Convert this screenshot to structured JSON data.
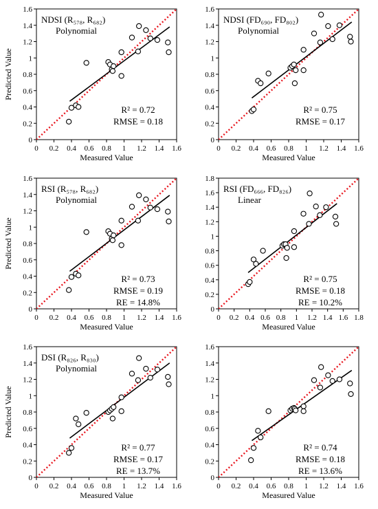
{
  "figure": {
    "chart_data": [
      {
        "type": "scatter",
        "label": "NDSI (R₅₇₈, R₆₈₂)",
        "method": "Polynomial",
        "r2": "R² = 0.72",
        "rmse": "RMSE = 0.18",
        "re": "",
        "xlabel": "Measured Value",
        "ylabel": "Predicted Value",
        "xlim": [
          0,
          1.6
        ],
        "ylim": [
          0,
          1.6
        ],
        "xticks": [
          "0",
          "0.2",
          "0.4",
          "0.6",
          "0.8",
          "1",
          "1.2",
          "1.4",
          "1.6"
        ],
        "yticks": [
          "0",
          "0.2",
          "0.4",
          "0.6",
          "0.8",
          "1",
          "1.2",
          "1.4",
          "1.6"
        ],
        "points": [
          [
            0.37,
            0.22
          ],
          [
            0.4,
            0.39
          ],
          [
            0.45,
            0.42
          ],
          [
            0.48,
            0.4
          ],
          [
            0.57,
            0.94
          ],
          [
            0.82,
            0.95
          ],
          [
            0.84,
            0.92
          ],
          [
            0.86,
            0.86
          ],
          [
            0.87,
            0.84
          ],
          [
            0.88,
            0.9
          ],
          [
            0.97,
            1.07
          ],
          [
            0.97,
            0.78
          ],
          [
            1.09,
            1.25
          ],
          [
            1.16,
            1.08
          ],
          [
            1.17,
            1.39
          ],
          [
            1.25,
            1.34
          ],
          [
            1.3,
            1.24
          ],
          [
            1.38,
            1.22
          ],
          [
            1.5,
            1.19
          ],
          [
            1.51,
            1.07
          ]
        ],
        "fit": [
          [
            0.38,
            0.47
          ],
          [
            1.52,
            1.38
          ]
        ]
      },
      {
        "type": "scatter",
        "label": "NDSI (FD₆₉₀, FD₈₀₂)",
        "method": "Polynomial",
        "r2": "R² = 0.75",
        "rmse": "RMSE = 0.17",
        "re": "",
        "xlabel": "Measured Value",
        "ylabel": "",
        "xlim": [
          0,
          1.6
        ],
        "ylim": [
          0,
          1.6
        ],
        "xticks": [
          "0",
          "0.2",
          "0.4",
          "0.6",
          "0.8",
          "1",
          "1.2",
          "1.4",
          "1.6"
        ],
        "yticks": [
          "0",
          "0.2",
          "0.4",
          "0.6",
          "0.8",
          "1",
          "1.2",
          "1.4",
          "1.6"
        ],
        "points": [
          [
            0.38,
            0.35
          ],
          [
            0.4,
            0.37
          ],
          [
            0.45,
            0.72
          ],
          [
            0.48,
            0.69
          ],
          [
            0.57,
            0.81
          ],
          [
            0.82,
            0.88
          ],
          [
            0.84,
            0.9
          ],
          [
            0.86,
            0.92
          ],
          [
            0.87,
            0.69
          ],
          [
            0.88,
            0.85
          ],
          [
            0.97,
            1.1
          ],
          [
            0.97,
            0.85
          ],
          [
            1.09,
            1.3
          ],
          [
            1.16,
            1.19
          ],
          [
            1.17,
            1.53
          ],
          [
            1.25,
            1.39
          ],
          [
            1.3,
            1.23
          ],
          [
            1.38,
            1.4
          ],
          [
            1.5,
            1.26
          ],
          [
            1.51,
            1.2
          ]
        ],
        "fit": [
          [
            0.38,
            0.51
          ],
          [
            1.52,
            1.44
          ]
        ]
      },
      {
        "type": "scatter",
        "label": "RSI (R₅₇₈, R₆₈₂)",
        "method": "Polynomial",
        "r2": "R² = 0.73",
        "rmse": "RMSE = 0.19",
        "re": "RE = 14.8%",
        "xlabel": "Measured Value",
        "ylabel": "Predicted Value",
        "xlim": [
          0,
          1.6
        ],
        "ylim": [
          0,
          1.6
        ],
        "xticks": [
          "0",
          "0.2",
          "0.4",
          "0.6",
          "0.8",
          "1",
          "1.2",
          "1.4",
          "1.6"
        ],
        "yticks": [
          "0",
          "0.2",
          "0.4",
          "0.6",
          "0.8",
          "1",
          "1.2",
          "1.4",
          "1.6"
        ],
        "points": [
          [
            0.37,
            0.23
          ],
          [
            0.4,
            0.39
          ],
          [
            0.45,
            0.43
          ],
          [
            0.48,
            0.41
          ],
          [
            0.57,
            0.94
          ],
          [
            0.82,
            0.95
          ],
          [
            0.84,
            0.92
          ],
          [
            0.86,
            0.86
          ],
          [
            0.87,
            0.84
          ],
          [
            0.88,
            0.9
          ],
          [
            0.97,
            1.08
          ],
          [
            0.97,
            0.78
          ],
          [
            1.09,
            1.25
          ],
          [
            1.16,
            1.08
          ],
          [
            1.17,
            1.39
          ],
          [
            1.25,
            1.34
          ],
          [
            1.3,
            1.24
          ],
          [
            1.38,
            1.22
          ],
          [
            1.5,
            1.19
          ],
          [
            1.51,
            1.07
          ]
        ],
        "fit": [
          [
            0.38,
            0.46
          ],
          [
            1.52,
            1.39
          ]
        ]
      },
      {
        "type": "scatter",
        "label": "RSI (FD₆₆₆, FD₈₂₆)",
        "method": "Linear",
        "r2": "R² = 0.75",
        "rmse": "RMSE = 0.18",
        "re": "RE = 10.2%",
        "xlabel": "Measured Value",
        "ylabel": "",
        "xlim": [
          0,
          1.8
        ],
        "ylim": [
          0,
          1.8
        ],
        "xticks": [
          "0",
          "0.2",
          "0.4",
          "0.6",
          "0.8",
          "1",
          "1.2",
          "1.4",
          "1.6",
          "1.8"
        ],
        "yticks": [
          "0",
          "0.2",
          "0.4",
          "0.6",
          "0.8",
          "1",
          "1.2",
          "1.4",
          "1.6",
          "1.8"
        ],
        "points": [
          [
            0.38,
            0.34
          ],
          [
            0.4,
            0.37
          ],
          [
            0.45,
            0.68
          ],
          [
            0.48,
            0.62
          ],
          [
            0.57,
            0.8
          ],
          [
            0.82,
            0.87
          ],
          [
            0.84,
            0.89
          ],
          [
            0.86,
            0.89
          ],
          [
            0.87,
            0.7
          ],
          [
            0.88,
            0.84
          ],
          [
            0.97,
            1.07
          ],
          [
            0.97,
            0.85
          ],
          [
            1.09,
            1.31
          ],
          [
            1.16,
            1.17
          ],
          [
            1.17,
            1.59
          ],
          [
            1.25,
            1.41
          ],
          [
            1.3,
            1.29
          ],
          [
            1.38,
            1.4
          ],
          [
            1.5,
            1.27
          ],
          [
            1.51,
            1.17
          ]
        ],
        "fit": [
          [
            0.38,
            0.5
          ],
          [
            1.52,
            1.45
          ]
        ]
      },
      {
        "type": "scatter",
        "label": "DSI (R₈₂₆, R₈₃₀)",
        "method": "Polynomial",
        "r2": "R² = 0.77",
        "rmse": "RMSE = 0.17",
        "re": "RE = 13.7%",
        "xlabel": "Measured Value",
        "ylabel": "Predicted Value",
        "xlim": [
          0,
          1.6
        ],
        "ylim": [
          0,
          1.6
        ],
        "xticks": [
          "0",
          "0.2",
          "0.4",
          "0.6",
          "0.8",
          "1",
          "1.2",
          "1.4",
          "1.6"
        ],
        "yticks": [
          "0",
          "0.2",
          "0.4",
          "0.6",
          "0.8",
          "1",
          "1.2",
          "1.4",
          "1.6"
        ],
        "points": [
          [
            0.37,
            0.3
          ],
          [
            0.4,
            0.36
          ],
          [
            0.45,
            0.72
          ],
          [
            0.48,
            0.65
          ],
          [
            0.57,
            0.79
          ],
          [
            0.82,
            0.8
          ],
          [
            0.84,
            0.82
          ],
          [
            0.86,
            0.84
          ],
          [
            0.87,
            0.72
          ],
          [
            0.88,
            0.86
          ],
          [
            0.97,
            0.98
          ],
          [
            0.97,
            0.81
          ],
          [
            1.09,
            1.27
          ],
          [
            1.16,
            1.19
          ],
          [
            1.17,
            1.46
          ],
          [
            1.25,
            1.33
          ],
          [
            1.3,
            1.22
          ],
          [
            1.38,
            1.32
          ],
          [
            1.5,
            1.23
          ],
          [
            1.51,
            1.14
          ]
        ],
        "fit": [
          [
            0.38,
            0.48
          ],
          [
            1.52,
            1.4
          ]
        ]
      },
      {
        "type": "scatter",
        "label": "",
        "method": "",
        "r2": "R² = 0.74",
        "rmse": "RMSE = 0.18",
        "re": "RE = 13.6%",
        "xlabel": "Measured Value",
        "ylabel": "",
        "xlim": [
          0,
          1.6
        ],
        "ylim": [
          0,
          1.6
        ],
        "xticks": [
          "0",
          "0.2",
          "0.4",
          "0.6",
          "0.8",
          "1",
          "1.2",
          "1.4",
          "1.6"
        ],
        "yticks": [
          "0",
          "0.2",
          "0.4",
          "0.6",
          "0.8",
          "1",
          "1.2",
          "1.4",
          "1.6"
        ],
        "points": [
          [
            0.37,
            0.21
          ],
          [
            0.4,
            0.36
          ],
          [
            0.45,
            0.57
          ],
          [
            0.48,
            0.49
          ],
          [
            0.57,
            0.81
          ],
          [
            0.82,
            0.82
          ],
          [
            0.84,
            0.84
          ],
          [
            0.86,
            0.85
          ],
          [
            0.87,
            0.84
          ],
          [
            0.88,
            0.82
          ],
          [
            0.97,
            0.87
          ],
          [
            0.97,
            0.81
          ],
          [
            1.09,
            1.19
          ],
          [
            1.16,
            1.1
          ],
          [
            1.17,
            1.35
          ],
          [
            1.25,
            1.25
          ],
          [
            1.3,
            1.18
          ],
          [
            1.38,
            1.2
          ],
          [
            1.5,
            1.15
          ],
          [
            1.51,
            1.02
          ]
        ],
        "fit": [
          [
            0.38,
            0.45
          ],
          [
            1.52,
            1.31
          ]
        ]
      }
    ],
    "colors": {
      "reference_line": "#e8141c",
      "markers": "#000000",
      "fit_line": "#000000"
    }
  }
}
